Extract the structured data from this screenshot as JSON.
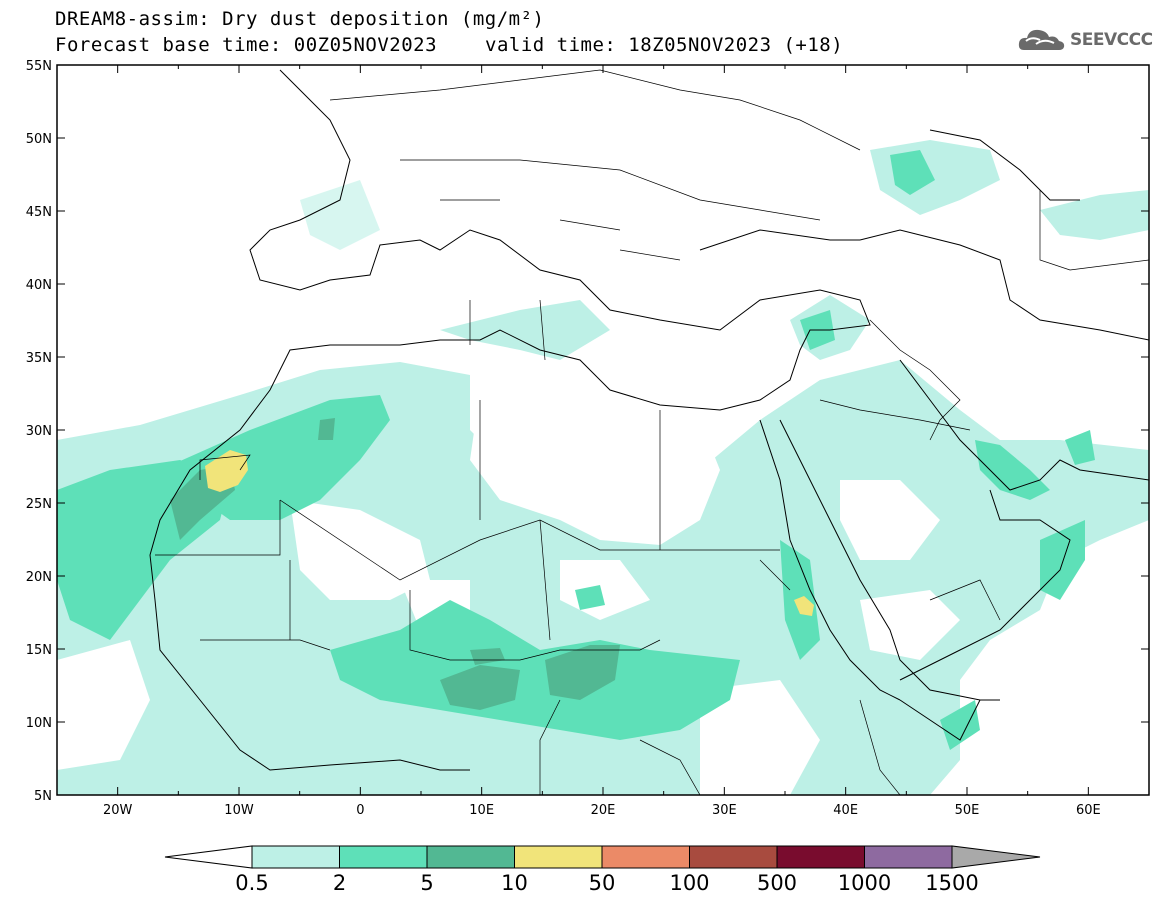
{
  "title": {
    "line1": "DREAM8-assim: Dry dust deposition (mg/m²)",
    "line2": "Forecast base time: 00Z05NOV2023",
    "valid": "valid time: 18Z05NOV2023 (+18)"
  },
  "logo": {
    "text": "SEEVCCC",
    "icon": "cloud-logo-icon"
  },
  "map": {
    "lon_range": [
      -25,
      65
    ],
    "lat_range": [
      5,
      55
    ],
    "lat_labels": [
      "55N",
      "50N",
      "45N",
      "40N",
      "35N",
      "30N",
      "25N",
      "20N",
      "15N",
      "10N",
      "5N"
    ],
    "lon_labels": [
      "20W",
      "10W",
      "0",
      "10E",
      "20E",
      "30E",
      "40E",
      "50E",
      "60E"
    ]
  },
  "colorbar": {
    "colors": [
      "#bdf0e6",
      "#5ee0b8",
      "#52b893",
      "#f1e47a",
      "#eb8a67",
      "#a84b3f",
      "#790c2e",
      "#8e6aa0"
    ],
    "end_low_color": "#ffffff",
    "end_high_color": "#a9a9a9",
    "labels": [
      "0.5",
      "2",
      "5",
      "10",
      "50",
      "100",
      "500",
      "1000",
      "1500"
    ]
  },
  "colors": {
    "c1": "#bdf0e6",
    "c2": "#5ee0b8",
    "c3": "#52b893",
    "c4": "#f1e47a"
  }
}
